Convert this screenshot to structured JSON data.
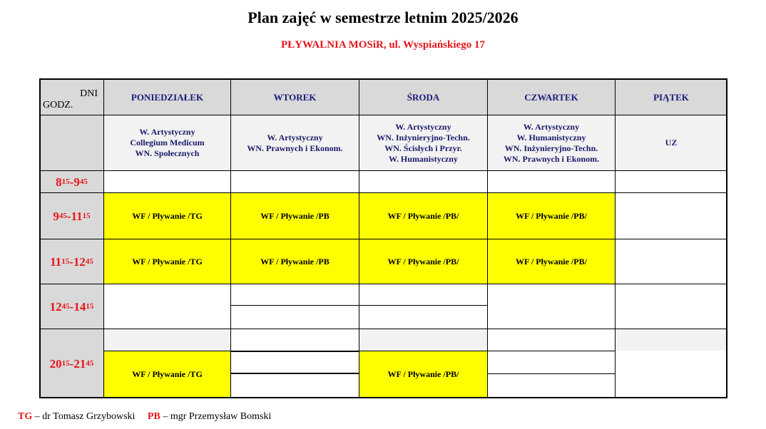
{
  "title": "Plan zajęć w semestrze letnim 2025/2026",
  "subtitle": "PŁYWALNIA MOSiR, ul. Wyspiańskiego 17",
  "corner": {
    "days": "DNI",
    "hours": "GODZ."
  },
  "days": [
    "PONIEDZIAŁEK",
    "WTOREK",
    "ŚRODA",
    "CZWARTEK",
    "PIĄTEK"
  ],
  "faculties": [
    [
      "W. Artystyczny",
      "Collegium Medicum",
      "WN. Społecznych"
    ],
    [
      "W. Artystyczny",
      "WN. Prawnych i Ekonom."
    ],
    [
      "W. Artystyczny",
      "WN. Inżynieryjno-Techn.",
      "WN. Ścisłych i Przyr.",
      "W. Humanistyczny"
    ],
    [
      "W. Artystyczny",
      "W. Humanistyczny",
      "WN. Inżynieryjno-Techn.",
      "WN. Prawnych i Ekonom."
    ],
    [
      "UZ"
    ]
  ],
  "times": [
    {
      "start": "8",
      "start_sup": "15",
      "end": "9",
      "end_sup": "45"
    },
    {
      "start": "9",
      "start_sup": "45",
      "end": "11",
      "end_sup": "15"
    },
    {
      "start": "11",
      "start_sup": "15",
      "end": "12",
      "end_sup": "45"
    },
    {
      "start": "12",
      "start_sup": "45",
      "end": "14",
      "end_sup": "15"
    },
    {
      "start": "20",
      "start_sup": "15",
      "end": "21",
      "end_sup": "45"
    }
  ],
  "classes": {
    "tg": "WF / Pływanie /TG",
    "pb": "WF / Pływanie /PB",
    "pb2": "WF / Pływanie /PB/"
  },
  "legend": [
    {
      "code": "TG",
      "text": " – dr Tomasz Grzybowski"
    },
    {
      "code": "PB",
      "text": " – mgr Przemysław Bomski"
    }
  ],
  "colors": {
    "highlight": "#ffff00",
    "header": "#d9d9d9",
    "accent": "#e8141b"
  }
}
